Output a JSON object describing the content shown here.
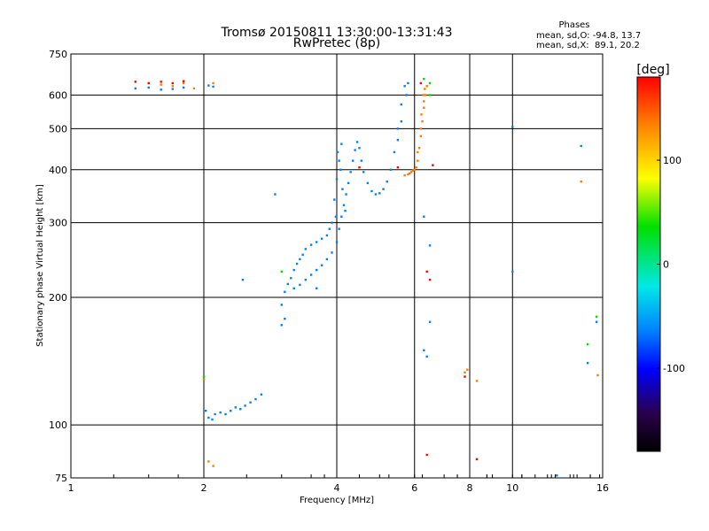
{
  "chart_data": {
    "type": "scatter",
    "title": "Tromsø 20150811 13:30:00-13:31:43",
    "subtitle": "RwPretec (8p)",
    "xlabel": "Frequency [MHz]",
    "ylabel": "Stationary phase Virtual Height [km]",
    "x_scale": "log",
    "y_scale": "log",
    "xlim": [
      1,
      16
    ],
    "ylim": [
      75,
      750
    ],
    "x_ticks": [
      1,
      2,
      4,
      6,
      8,
      10,
      16
    ],
    "x_tick_labels": [
      "1",
      "2",
      "4",
      "6",
      "8",
      "10",
      "16"
    ],
    "y_ticks": [
      75,
      100,
      200,
      300,
      400,
      500,
      600,
      750
    ],
    "y_tick_labels": [
      "75",
      "100",
      "200",
      "300",
      "400",
      "500",
      "600",
      "750"
    ],
    "grid": true,
    "stats": {
      "header": "Phases",
      "line_o": "mean, sd,O: -94.8, 13.7",
      "line_x": "mean, sd,X:  89.1, 20.2"
    },
    "colorbar": {
      "label": "[deg]",
      "range": [
        -180,
        180
      ],
      "ticks": [
        100,
        0,
        -100
      ],
      "tick_labels": [
        "100",
        "0",
        "-100"
      ]
    },
    "series": [
      {
        "points": [
          [
            2.02,
            108
          ],
          [
            2.05,
            104
          ],
          [
            2.09,
            103
          ],
          [
            2.12,
            106
          ],
          [
            2.18,
            107
          ],
          [
            2.24,
            106
          ],
          [
            2.3,
            108
          ],
          [
            2.36,
            110
          ],
          [
            2.42,
            109
          ],
          [
            2.48,
            111
          ],
          [
            2.55,
            113
          ],
          [
            2.62,
            115
          ],
          [
            2.7,
            118
          ],
          [
            2.05,
            632
          ],
          [
            2.1,
            628
          ],
          [
            1.4,
            622
          ],
          [
            1.5,
            625
          ],
          [
            1.6,
            618
          ],
          [
            1.7,
            620
          ],
          [
            1.8,
            625
          ],
          [
            2.45,
            220
          ],
          [
            3.0,
            172
          ],
          [
            3.05,
            178
          ],
          [
            3.0,
            192
          ],
          [
            3.05,
            206
          ],
          [
            3.1,
            215
          ],
          [
            3.15,
            222
          ],
          [
            3.2,
            232
          ],
          [
            3.25,
            240
          ],
          [
            3.3,
            246
          ],
          [
            3.35,
            252
          ],
          [
            3.4,
            260
          ],
          [
            3.5,
            266
          ],
          [
            3.6,
            270
          ],
          [
            3.7,
            275
          ],
          [
            3.2,
            210
          ],
          [
            3.3,
            214
          ],
          [
            3.4,
            220
          ],
          [
            3.5,
            226
          ],
          [
            3.6,
            232
          ],
          [
            3.7,
            238
          ],
          [
            3.8,
            246
          ],
          [
            3.9,
            255
          ],
          [
            4.0,
            270
          ],
          [
            4.05,
            290
          ],
          [
            4.1,
            310
          ],
          [
            4.15,
            330
          ],
          [
            4.2,
            350
          ],
          [
            4.25,
            372
          ],
          [
            4.3,
            395
          ],
          [
            4.35,
            420
          ],
          [
            4.4,
            445
          ],
          [
            4.45,
            465
          ],
          [
            4.5,
            450
          ],
          [
            4.55,
            420
          ],
          [
            4.6,
            395
          ],
          [
            4.7,
            372
          ],
          [
            4.8,
            356
          ],
          [
            4.9,
            350
          ],
          [
            5.0,
            352
          ],
          [
            5.1,
            360
          ],
          [
            5.2,
            375
          ],
          [
            5.3,
            400
          ],
          [
            5.4,
            440
          ],
          [
            5.5,
            500
          ],
          [
            5.6,
            570
          ],
          [
            5.7,
            630
          ],
          [
            5.8,
            640
          ],
          [
            4.0,
            380
          ],
          [
            4.05,
            420
          ],
          [
            4.1,
            460
          ],
          [
            4.02,
            440
          ],
          [
            3.95,
            340
          ],
          [
            3.98,
            310
          ],
          [
            4.08,
            400
          ],
          [
            4.12,
            360
          ],
          [
            4.18,
            320
          ],
          [
            3.9,
            300
          ],
          [
            3.8,
            280
          ],
          [
            3.85,
            290
          ],
          [
            5.5,
            470
          ],
          [
            5.6,
            520
          ],
          [
            5.75,
            600
          ],
          [
            6.3,
            310
          ],
          [
            6.5,
            265
          ],
          [
            6.4,
            145
          ],
          [
            6.5,
            175
          ],
          [
            6.3,
            150
          ],
          [
            12.6,
            76
          ],
          [
            14.3,
            455
          ],
          [
            14.8,
            140
          ],
          [
            15.5,
            175
          ],
          [
            10,
            230
          ],
          [
            10,
            505
          ],
          [
            2.9,
            350
          ],
          [
            3.6,
            210
          ]
        ],
        "phase_deg": -100
      },
      {
        "points": [
          [
            5.8,
            390
          ],
          [
            5.9,
            395
          ],
          [
            6.0,
            400
          ],
          [
            6.1,
            420
          ],
          [
            6.15,
            450
          ],
          [
            6.2,
            480
          ],
          [
            6.25,
            520
          ],
          [
            6.3,
            560
          ],
          [
            6.35,
            600
          ],
          [
            6.4,
            630
          ],
          [
            6.05,
            405
          ],
          [
            5.95,
            398
          ],
          [
            6.1,
            440
          ],
          [
            6.2,
            500
          ],
          [
            6.3,
            580
          ],
          [
            5.7,
            388
          ],
          [
            5.85,
            392
          ],
          [
            6.22,
            540
          ],
          [
            6.28,
            600
          ],
          [
            6.33,
            620
          ],
          [
            1.5,
            640
          ],
          [
            1.6,
            635
          ],
          [
            1.7,
            630
          ],
          [
            1.8,
            640
          ],
          [
            1.9,
            622
          ],
          [
            2.0,
            128
          ],
          [
            2.05,
            82
          ],
          [
            2.1,
            80
          ],
          [
            2.1,
            640
          ],
          [
            7.8,
            133
          ],
          [
            7.9,
            135
          ],
          [
            8.3,
            127
          ],
          [
            14.3,
            375
          ],
          [
            15.6,
            131
          ]
        ],
        "phase_deg": 100
      },
      {
        "points": [
          [
            1.4,
            645
          ],
          [
            1.5,
            640
          ],
          [
            1.6,
            645
          ],
          [
            1.7,
            640
          ],
          [
            1.8,
            647
          ],
          [
            6.4,
            230
          ],
          [
            6.5,
            220
          ],
          [
            6.4,
            85
          ],
          [
            8.3,
            83
          ],
          [
            6.6,
            410
          ],
          [
            5.5,
            405
          ],
          [
            4.5,
            405
          ],
          [
            7.8,
            130
          ],
          [
            6.2,
            640
          ]
        ],
        "phase_deg": 150
      },
      {
        "points": [
          [
            6.3,
            655
          ],
          [
            6.5,
            640
          ],
          [
            6.5,
            600
          ],
          [
            3.0,
            230
          ],
          [
            2.0,
            130
          ],
          [
            14.8,
            155
          ],
          [
            15.5,
            180
          ]
        ],
        "phase_deg": 20
      }
    ]
  }
}
